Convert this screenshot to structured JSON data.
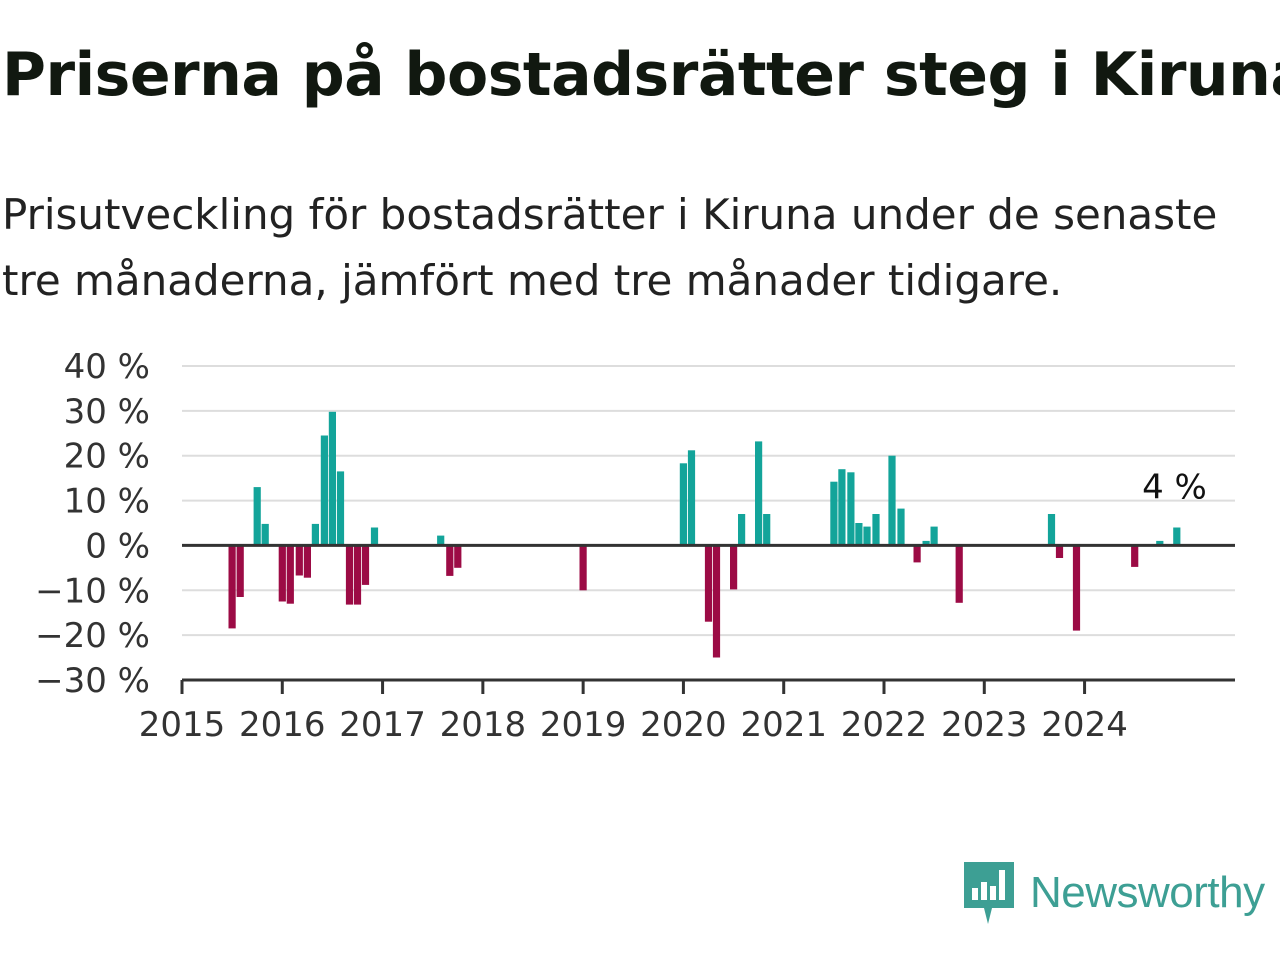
{
  "title": "Priserna på bostadsrätter steg i Kiruna",
  "subtitle": "Prisutveckling för bostadsrätter i Kiruna under de senaste tre månaderna, jämfört med tre månader tidigare.",
  "brand": {
    "name": "Newsworthy",
    "color": "#3d9f94",
    "icon": "newsworthy-logo-icon"
  },
  "colors": {
    "positive": "#13a49a",
    "negative": "#9c0b45",
    "grid": "#dddddd",
    "axis": "#333333"
  },
  "chart_data": {
    "type": "bar",
    "title": "Priserna på bostadsrätter steg i Kiruna",
    "ylim": [
      -30,
      40
    ],
    "yticks": [
      40,
      30,
      20,
      10,
      0,
      -10,
      -20,
      -30
    ],
    "ytick_labels": [
      "40 %",
      "30 %",
      "20 %",
      "10 %",
      "0 %",
      "−10 %",
      "−20 %",
      "−30 %"
    ],
    "xlim": [
      2015,
      2025.5
    ],
    "xticks": [
      "2015",
      "2016",
      "2017",
      "2018",
      "2019",
      "2020",
      "2021",
      "2022",
      "2023",
      "2024"
    ],
    "grid": true,
    "annotation": "4 %",
    "x": [
      2015.5,
      2015.58,
      2015.75,
      2015.83,
      2016.0,
      2016.08,
      2016.17,
      2016.25,
      2016.33,
      2016.42,
      2016.5,
      2016.58,
      2016.67,
      2016.75,
      2016.83,
      2016.92,
      2017.58,
      2017.67,
      2017.75,
      2019.0,
      2020.0,
      2020.08,
      2020.25,
      2020.33,
      2020.5,
      2020.58,
      2020.75,
      2020.83,
      2021.5,
      2021.58,
      2021.67,
      2021.75,
      2021.83,
      2021.92,
      2022.08,
      2022.17,
      2022.33,
      2022.42,
      2022.5,
      2022.75,
      2023.67,
      2023.75,
      2023.92,
      2024.5,
      2024.75,
      2024.92
    ],
    "values": [
      -18.5,
      -11.5,
      13,
      4.8,
      -12.5,
      -13,
      -6.7,
      -7.2,
      4.8,
      24.5,
      29.8,
      16.5,
      -13.2,
      -13.2,
      -8.8,
      4,
      2.2,
      -6.8,
      -5,
      -10,
      18.3,
      21.2,
      -17,
      -25,
      -9.8,
      7,
      23.2,
      7,
      14.2,
      17,
      16.3,
      5,
      4.2,
      7,
      20,
      8.2,
      -3.8,
      1,
      4.2,
      -12.8,
      7,
      -2.8,
      -19,
      -4.8,
      1,
      4
    ]
  }
}
